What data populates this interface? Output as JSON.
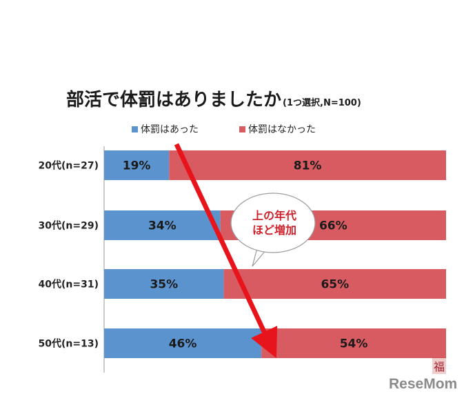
{
  "chart_data": {
    "type": "bar",
    "orientation": "horizontal",
    "stacked": true,
    "percent": true,
    "title": "部活で体罰はありましたか",
    "subtitle": "(1つ選択,N=100)",
    "categories": [
      "20代(n=27)",
      "30代(n=29)",
      "40代(n=31)",
      "50代(n=13)"
    ],
    "series": [
      {
        "name": "体罰はあった",
        "values": [
          19,
          34,
          35,
          46
        ],
        "color": "#5b93cf"
      },
      {
        "name": "体罰はなかった",
        "values": [
          81,
          66,
          65,
          54
        ],
        "color": "#d95b62"
      }
    ],
    "value_labels": [
      [
        "19%",
        "34%",
        "35%",
        "46%"
      ],
      [
        "81%",
        "66%",
        "65%",
        "54%"
      ]
    ],
    "xlim": [
      0,
      100
    ],
    "legend": "top",
    "grid": false,
    "annotation": {
      "lines": [
        "上の年代",
        "ほど増加"
      ],
      "arrow_color": "#e8141c"
    }
  },
  "watermark": {
    "text": "ReseMom",
    "mark": "福"
  }
}
